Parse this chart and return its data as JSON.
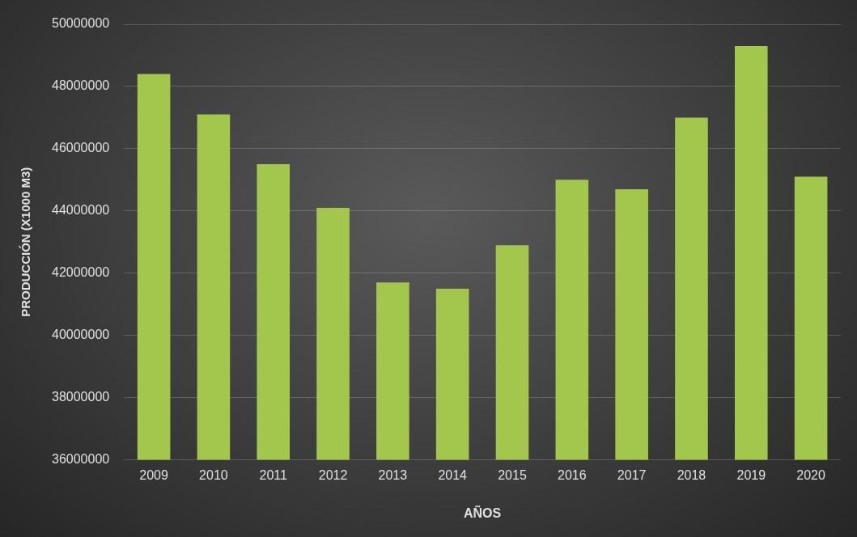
{
  "chart_data": {
    "type": "bar",
    "xlabel": "AÑOS",
    "ylabel": "PRODUCCIÓN (X1000 M3)",
    "categories": [
      "2009",
      "2010",
      "2011",
      "2012",
      "2013",
      "2014",
      "2015",
      "2016",
      "2017",
      "2018",
      "2019",
      "2020"
    ],
    "values": [
      48400000,
      47100000,
      45500000,
      44100000,
      41700000,
      41500000,
      42900000,
      45000000,
      44700000,
      47000000,
      49300000,
      45100000
    ],
    "color": "#a3c74c",
    "ylim": [
      36000000,
      50000000
    ],
    "yticks": [
      36000000,
      38000000,
      40000000,
      42000000,
      44000000,
      46000000,
      48000000,
      50000000
    ],
    "grid": "y",
    "legend": false
  }
}
